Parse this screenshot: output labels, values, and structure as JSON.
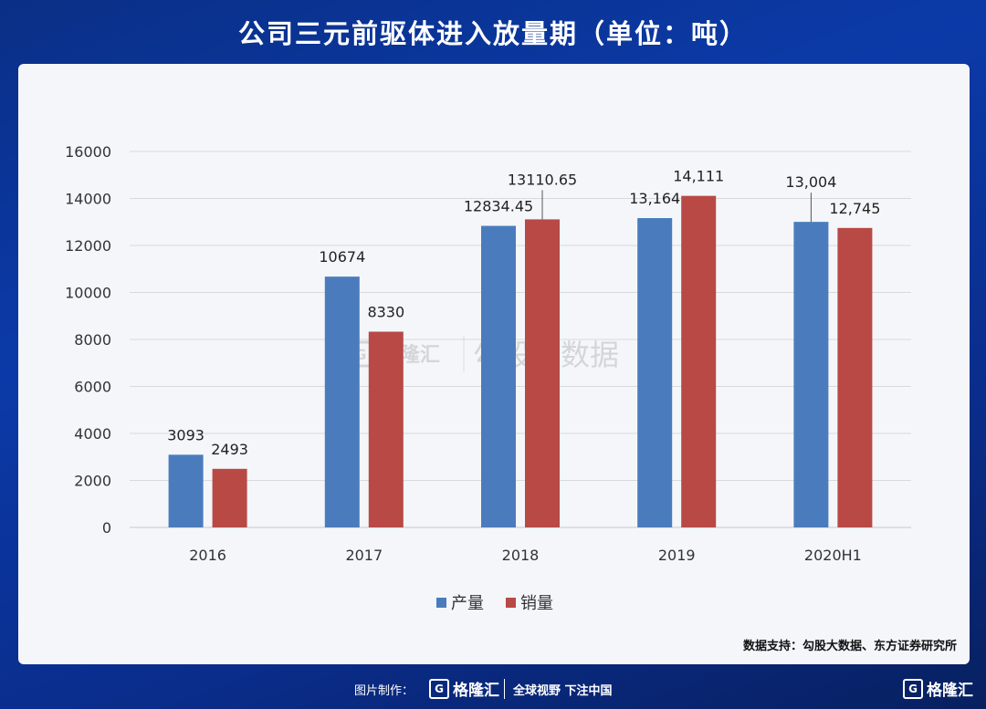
{
  "header": {
    "title": "公司三元前驱体进入放量期（单位：吨）"
  },
  "source": "数据支持：勾股大数据、东方证券研究所",
  "watermark": {
    "brand": "格隆汇",
    "text": "勾股大数据"
  },
  "footer": {
    "made_by": "图片制作：",
    "brand": "格隆汇",
    "slogan": "全球视野 下注中国",
    "corner_brand": "格隆汇"
  },
  "colors": {
    "production": "#4a7cbd",
    "sales": "#b84945"
  },
  "chart_data": {
    "type": "bar",
    "categories": [
      "2016",
      "2017",
      "2018",
      "2019",
      "2020H1"
    ],
    "series": [
      {
        "name": "产量",
        "values": [
          3093,
          10674,
          12834.45,
          13164,
          13004
        ],
        "labels": [
          "3093",
          "10674",
          "12834.45",
          "13,164",
          "13,004"
        ]
      },
      {
        "name": "销量",
        "values": [
          2493,
          8330,
          13110.65,
          14111,
          12745
        ],
        "labels": [
          "2493",
          "8330",
          "13110.65",
          "14,111",
          "12,745"
        ]
      }
    ],
    "ylim": [
      0,
      16000
    ],
    "yticks": [
      0,
      2000,
      4000,
      6000,
      8000,
      10000,
      12000,
      14000,
      16000
    ],
    "grid": true,
    "legend": "bottom-center"
  }
}
